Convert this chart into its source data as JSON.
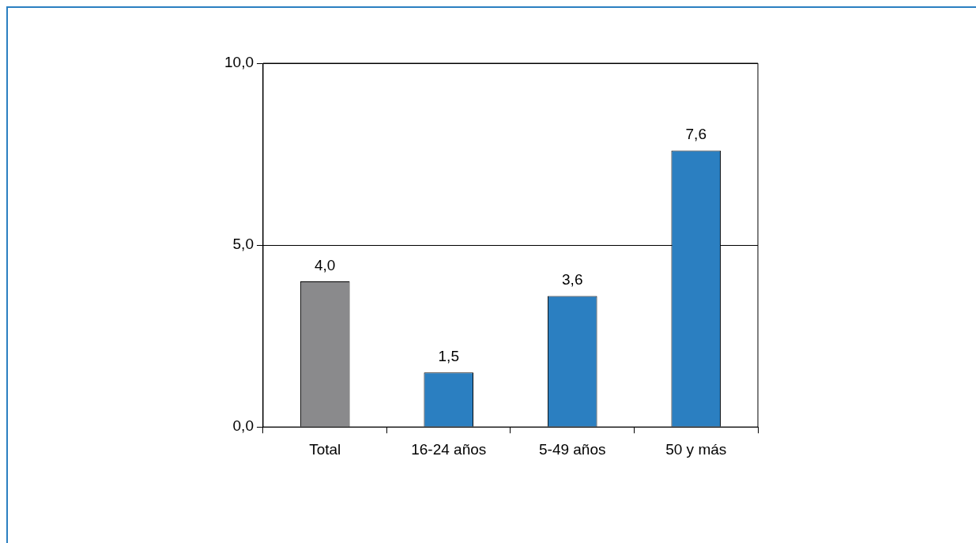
{
  "chart_data": {
    "type": "bar",
    "categories": [
      "Total",
      "16-24 años",
      "5-49 años",
      "50 y más"
    ],
    "values": [
      4.0,
      1.5,
      3.6,
      7.6
    ],
    "colors": [
      "#8a8a8c",
      "#2b7fc1",
      "#2b7fc1",
      "#2b7fc1"
    ],
    "value_labels": [
      "4,0",
      "1,5",
      "3,6",
      "7,6"
    ],
    "ylim": [
      0,
      10
    ],
    "yticks": [
      {
        "value": 0,
        "label": "0,0"
      },
      {
        "value": 5,
        "label": "5,0"
      },
      {
        "value": 10,
        "label": "10,0"
      }
    ],
    "grid": "y",
    "legend": false
  }
}
